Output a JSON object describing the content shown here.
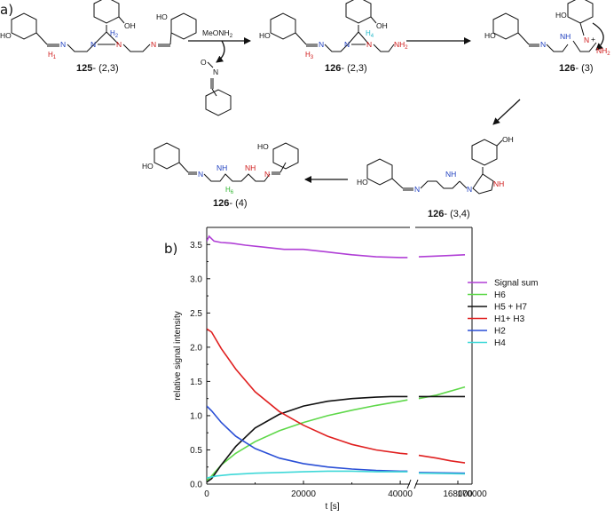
{
  "panel_a": {
    "label": "a)",
    "reagent": "MeONH",
    "reagent_sub": "2",
    "byproduct_atoms": {
      "o": "O",
      "n": "N"
    },
    "atoms": {
      "ho": "HO",
      "oh": "OH",
      "n": "N",
      "nh": "NH",
      "nh2": "NH",
      "nh2_sub": "2",
      "h": "H",
      "plus": "+"
    },
    "h_labels": {
      "h1": "H",
      "h2": "H",
      "h3": "H",
      "h4": "H",
      "h6": "H"
    },
    "h_subs": {
      "h1": "1",
      "h2": "2",
      "h3": "3",
      "h4": "4",
      "h6": "6"
    },
    "compounds": [
      {
        "num": "125",
        "suffix": "- (2,3)"
      },
      {
        "num": "126",
        "suffix": "- (2,3)"
      },
      {
        "num": "126",
        "suffix": "- (3)"
      },
      {
        "num": "126",
        "suffix": "- (3,4)"
      },
      {
        "num": "126",
        "suffix": "- (4)"
      }
    ],
    "colors": {
      "n_blue": "#1f3fbf",
      "n_red": "#d01a1a",
      "h_cyan": "#22b8c8",
      "h_green": "#2fb52f"
    }
  },
  "panel_b": {
    "label": "b)"
  },
  "chart_data": {
    "type": "line",
    "xlabel": "t [s]",
    "ylabel": "relative signal intensity",
    "x_axis_break": [
      42000,
      162000
    ],
    "x_ticks": [
      {
        "value": 0,
        "label": "0"
      },
      {
        "value": 20000,
        "label": "20000"
      },
      {
        "value": 40000,
        "label": "40000"
      },
      {
        "value": 168000,
        "label": "168000"
      },
      {
        "value": 170000,
        "label": "170000"
      }
    ],
    "xlim": [
      0,
      170000
    ],
    "ylim": [
      0.0,
      3.75
    ],
    "y_ticks": [
      "0.0",
      "0.5",
      "1.0",
      "1.5",
      "2.0",
      "2.5",
      "3.0",
      "3.5"
    ],
    "legend_position": "right",
    "series": [
      {
        "name": "Signal sum",
        "color": "#b03fd6",
        "x": [
          0,
          500,
          1500,
          3000,
          5000,
          8000,
          12000,
          16000,
          20000,
          25000,
          30000,
          35000,
          40000,
          41500,
          162500,
          164500,
          167000,
          169000
        ],
        "y": [
          3.55,
          3.62,
          3.55,
          3.53,
          3.52,
          3.49,
          3.46,
          3.43,
          3.43,
          3.39,
          3.35,
          3.32,
          3.31,
          3.31,
          3.32,
          3.33,
          3.34,
          3.35
        ]
      },
      {
        "name": "H6",
        "color": "#5fd84a",
        "x": [
          0,
          1000,
          3000,
          6000,
          10000,
          15000,
          20000,
          25000,
          30000,
          35000,
          40000,
          41500,
          162500,
          165000,
          167000,
          169000
        ],
        "y": [
          0.05,
          0.12,
          0.28,
          0.45,
          0.62,
          0.78,
          0.9,
          1.0,
          1.08,
          1.15,
          1.21,
          1.23,
          1.25,
          1.3,
          1.36,
          1.42
        ]
      },
      {
        "name": "H5 + H7",
        "color": "#111111",
        "x": [
          0,
          1000,
          3000,
          6000,
          10000,
          15000,
          20000,
          25000,
          30000,
          35000,
          38000,
          40000,
          41500,
          162500,
          169000
        ],
        "y": [
          0.03,
          0.08,
          0.28,
          0.55,
          0.82,
          1.02,
          1.14,
          1.21,
          1.25,
          1.27,
          1.28,
          1.28,
          1.28,
          1.28,
          1.28
        ]
      },
      {
        "name": "H1+ H3",
        "color": "#e02020",
        "x": [
          0,
          1000,
          3000,
          6000,
          10000,
          15000,
          20000,
          25000,
          30000,
          35000,
          40000,
          41500,
          162500,
          165000,
          167000,
          169000
        ],
        "y": [
          2.27,
          2.22,
          1.98,
          1.68,
          1.35,
          1.06,
          0.86,
          0.7,
          0.58,
          0.5,
          0.45,
          0.44,
          0.42,
          0.38,
          0.34,
          0.31
        ]
      },
      {
        "name": "H2",
        "color": "#2a4fd6",
        "x": [
          0,
          1000,
          3000,
          6000,
          10000,
          15000,
          20000,
          25000,
          30000,
          35000,
          40000,
          41500,
          162500,
          169000
        ],
        "y": [
          1.14,
          1.07,
          0.9,
          0.7,
          0.52,
          0.38,
          0.3,
          0.25,
          0.22,
          0.2,
          0.19,
          0.19,
          0.17,
          0.16
        ]
      },
      {
        "name": "H4",
        "color": "#3fd8d8",
        "x": [
          0,
          2000,
          5000,
          10000,
          15000,
          20000,
          25000,
          30000,
          35000,
          40000,
          41500,
          162500,
          169000
        ],
        "y": [
          0.09,
          0.12,
          0.14,
          0.16,
          0.17,
          0.18,
          0.19,
          0.19,
          0.18,
          0.18,
          0.18,
          0.16,
          0.15
        ]
      }
    ]
  }
}
